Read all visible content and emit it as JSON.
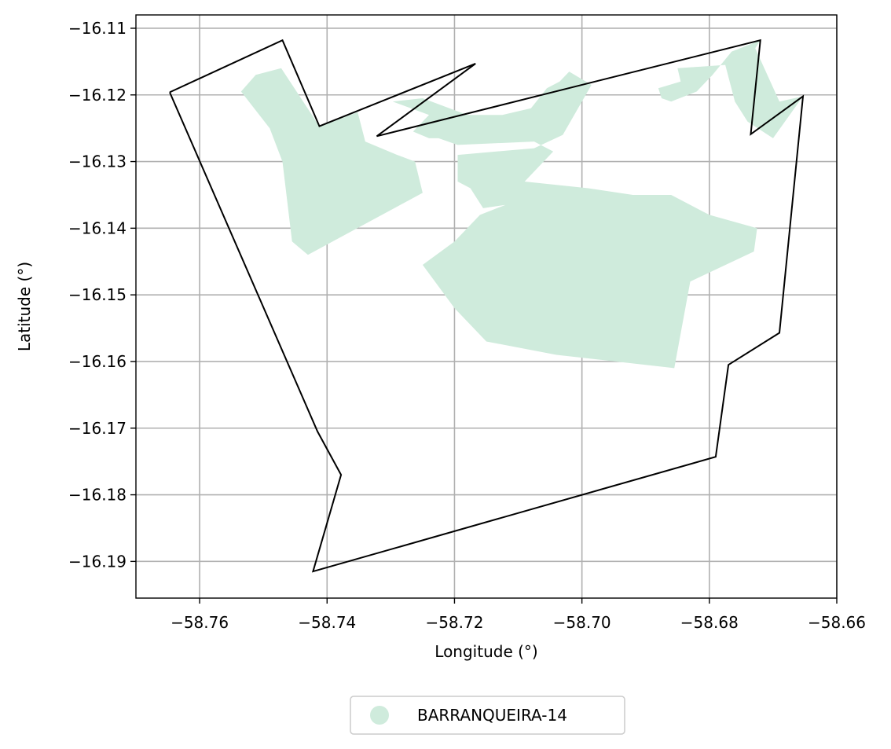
{
  "chart_data": {
    "type": "map",
    "xlabel": "Longitude (°)",
    "ylabel": "Latitude (°)",
    "xlim": [
      -58.77,
      -58.66
    ],
    "ylim": [
      -16.1955,
      -16.108
    ],
    "grid": true,
    "x_ticks": [
      -58.76,
      -58.74,
      -58.72,
      -58.7,
      -58.68,
      -58.66
    ],
    "x_tick_labels": [
      "−58.76",
      "−58.74",
      "−58.72",
      "−58.70",
      "−58.68",
      "−58.66"
    ],
    "y_ticks": [
      -16.11,
      -16.12,
      -16.13,
      -16.14,
      -16.15,
      -16.16,
      -16.17,
      -16.18,
      -16.19
    ],
    "y_tick_labels": [
      "−16.11",
      "−16.12",
      "−16.13",
      "−16.14",
      "−16.15",
      "−16.16",
      "−16.17",
      "−16.18",
      "−16.19"
    ],
    "legend": {
      "placement": "bottom-center-below-axes",
      "entries": [
        {
          "label": "BARRANQUEIRA-14",
          "color": "#cfebdc"
        }
      ]
    },
    "layers": {
      "boundary": {
        "name": "boundary",
        "stroke": "#000000",
        "fill": "none",
        "coords": [
          [
            -58.7647,
            -16.1196
          ],
          [
            -58.747,
            -16.1118
          ],
          [
            -58.7412,
            -16.1247
          ],
          [
            -58.7167,
            -16.1153
          ],
          [
            -58.7322,
            -16.1262
          ],
          [
            -58.672,
            -16.1118
          ],
          [
            -58.6735,
            -16.1259
          ],
          [
            -58.6653,
            -16.1202
          ],
          [
            -58.669,
            -16.1557
          ],
          [
            -58.677,
            -16.1605
          ],
          [
            -58.679,
            -16.1743
          ],
          [
            -58.7422,
            -16.1915
          ],
          [
            -58.7378,
            -16.177
          ],
          [
            -58.7415,
            -16.1705
          ],
          [
            -58.7647,
            -16.1196
          ]
        ]
      },
      "areas": {
        "name": "BARRANQUEIRA-14",
        "fill": "#cfebdc",
        "polygons": [
          [
            [
              -58.7535,
              -16.1195
            ],
            [
              -58.7512,
              -16.117
            ],
            [
              -58.7472,
              -16.116
            ],
            [
              -58.7412,
              -16.1247
            ],
            [
              -58.7352,
              -16.1226
            ],
            [
              -58.734,
              -16.127
            ],
            [
              -58.729,
              -16.129
            ],
            [
              -58.7262,
              -16.13
            ],
            [
              -58.725,
              -16.1347
            ],
            [
              -58.743,
              -16.144
            ],
            [
              -58.7455,
              -16.142
            ],
            [
              -58.747,
              -16.13
            ],
            [
              -58.749,
              -16.125
            ]
          ],
          [
            [
              -58.7297,
              -16.121
            ],
            [
              -58.725,
              -16.1205
            ],
            [
              -58.718,
              -16.123
            ],
            [
              -58.7125,
              -16.123
            ],
            [
              -58.708,
              -16.122
            ],
            [
              -58.7055,
              -16.119
            ],
            [
              -58.7035,
              -16.118
            ],
            [
              -58.702,
              -16.1165
            ],
            [
              -58.6985,
              -16.1185
            ],
            [
              -58.703,
              -16.126
            ],
            [
              -58.7075,
              -16.128
            ],
            [
              -58.7195,
              -16.129
            ],
            [
              -58.7195,
              -16.133
            ],
            [
              -58.7175,
              -16.134
            ],
            [
              -58.7155,
              -16.137
            ],
            [
              -58.712,
              -16.1365
            ],
            [
              -58.716,
              -16.138
            ],
            [
              -58.72,
              -16.142
            ],
            [
              -58.725,
              -16.1455
            ],
            [
              -58.72,
              -16.152
            ],
            [
              -58.715,
              -16.157
            ],
            [
              -58.704,
              -16.159
            ],
            [
              -58.6855,
              -16.161
            ],
            [
              -58.683,
              -16.148
            ],
            [
              -58.673,
              -16.1435
            ],
            [
              -58.6725,
              -16.14
            ],
            [
              -58.68,
              -16.138
            ],
            [
              -58.686,
              -16.135
            ],
            [
              -58.692,
              -16.135
            ],
            [
              -58.699,
              -16.134
            ],
            [
              -58.709,
              -16.133
            ],
            [
              -58.7045,
              -16.1285
            ],
            [
              -58.7075,
              -16.127
            ],
            [
              -58.7195,
              -16.1275
            ],
            [
              -58.7225,
              -16.1265
            ],
            [
              -58.724,
              -16.1265
            ],
            [
              -58.7265,
              -16.1255
            ],
            [
              -58.724,
              -16.123
            ]
          ],
          [
            [
              -58.672,
              -16.1118
            ],
            [
              -58.6765,
              -16.1135
            ],
            [
              -58.6795,
              -16.117
            ],
            [
              -58.682,
              -16.1195
            ],
            [
              -58.686,
              -16.121
            ],
            [
              -58.6875,
              -16.1205
            ],
            [
              -58.688,
              -16.119
            ],
            [
              -58.6845,
              -16.118
            ],
            [
              -58.685,
              -16.116
            ],
            [
              -58.6775,
              -16.1155
            ],
            [
              -58.676,
              -16.121
            ],
            [
              -58.674,
              -16.124
            ],
            [
              -58.67,
              -16.1265
            ],
            [
              -58.6653,
              -16.1202
            ],
            [
              -58.669,
              -16.121
            ],
            [
              -58.6728,
              -16.113
            ]
          ]
        ]
      }
    }
  }
}
